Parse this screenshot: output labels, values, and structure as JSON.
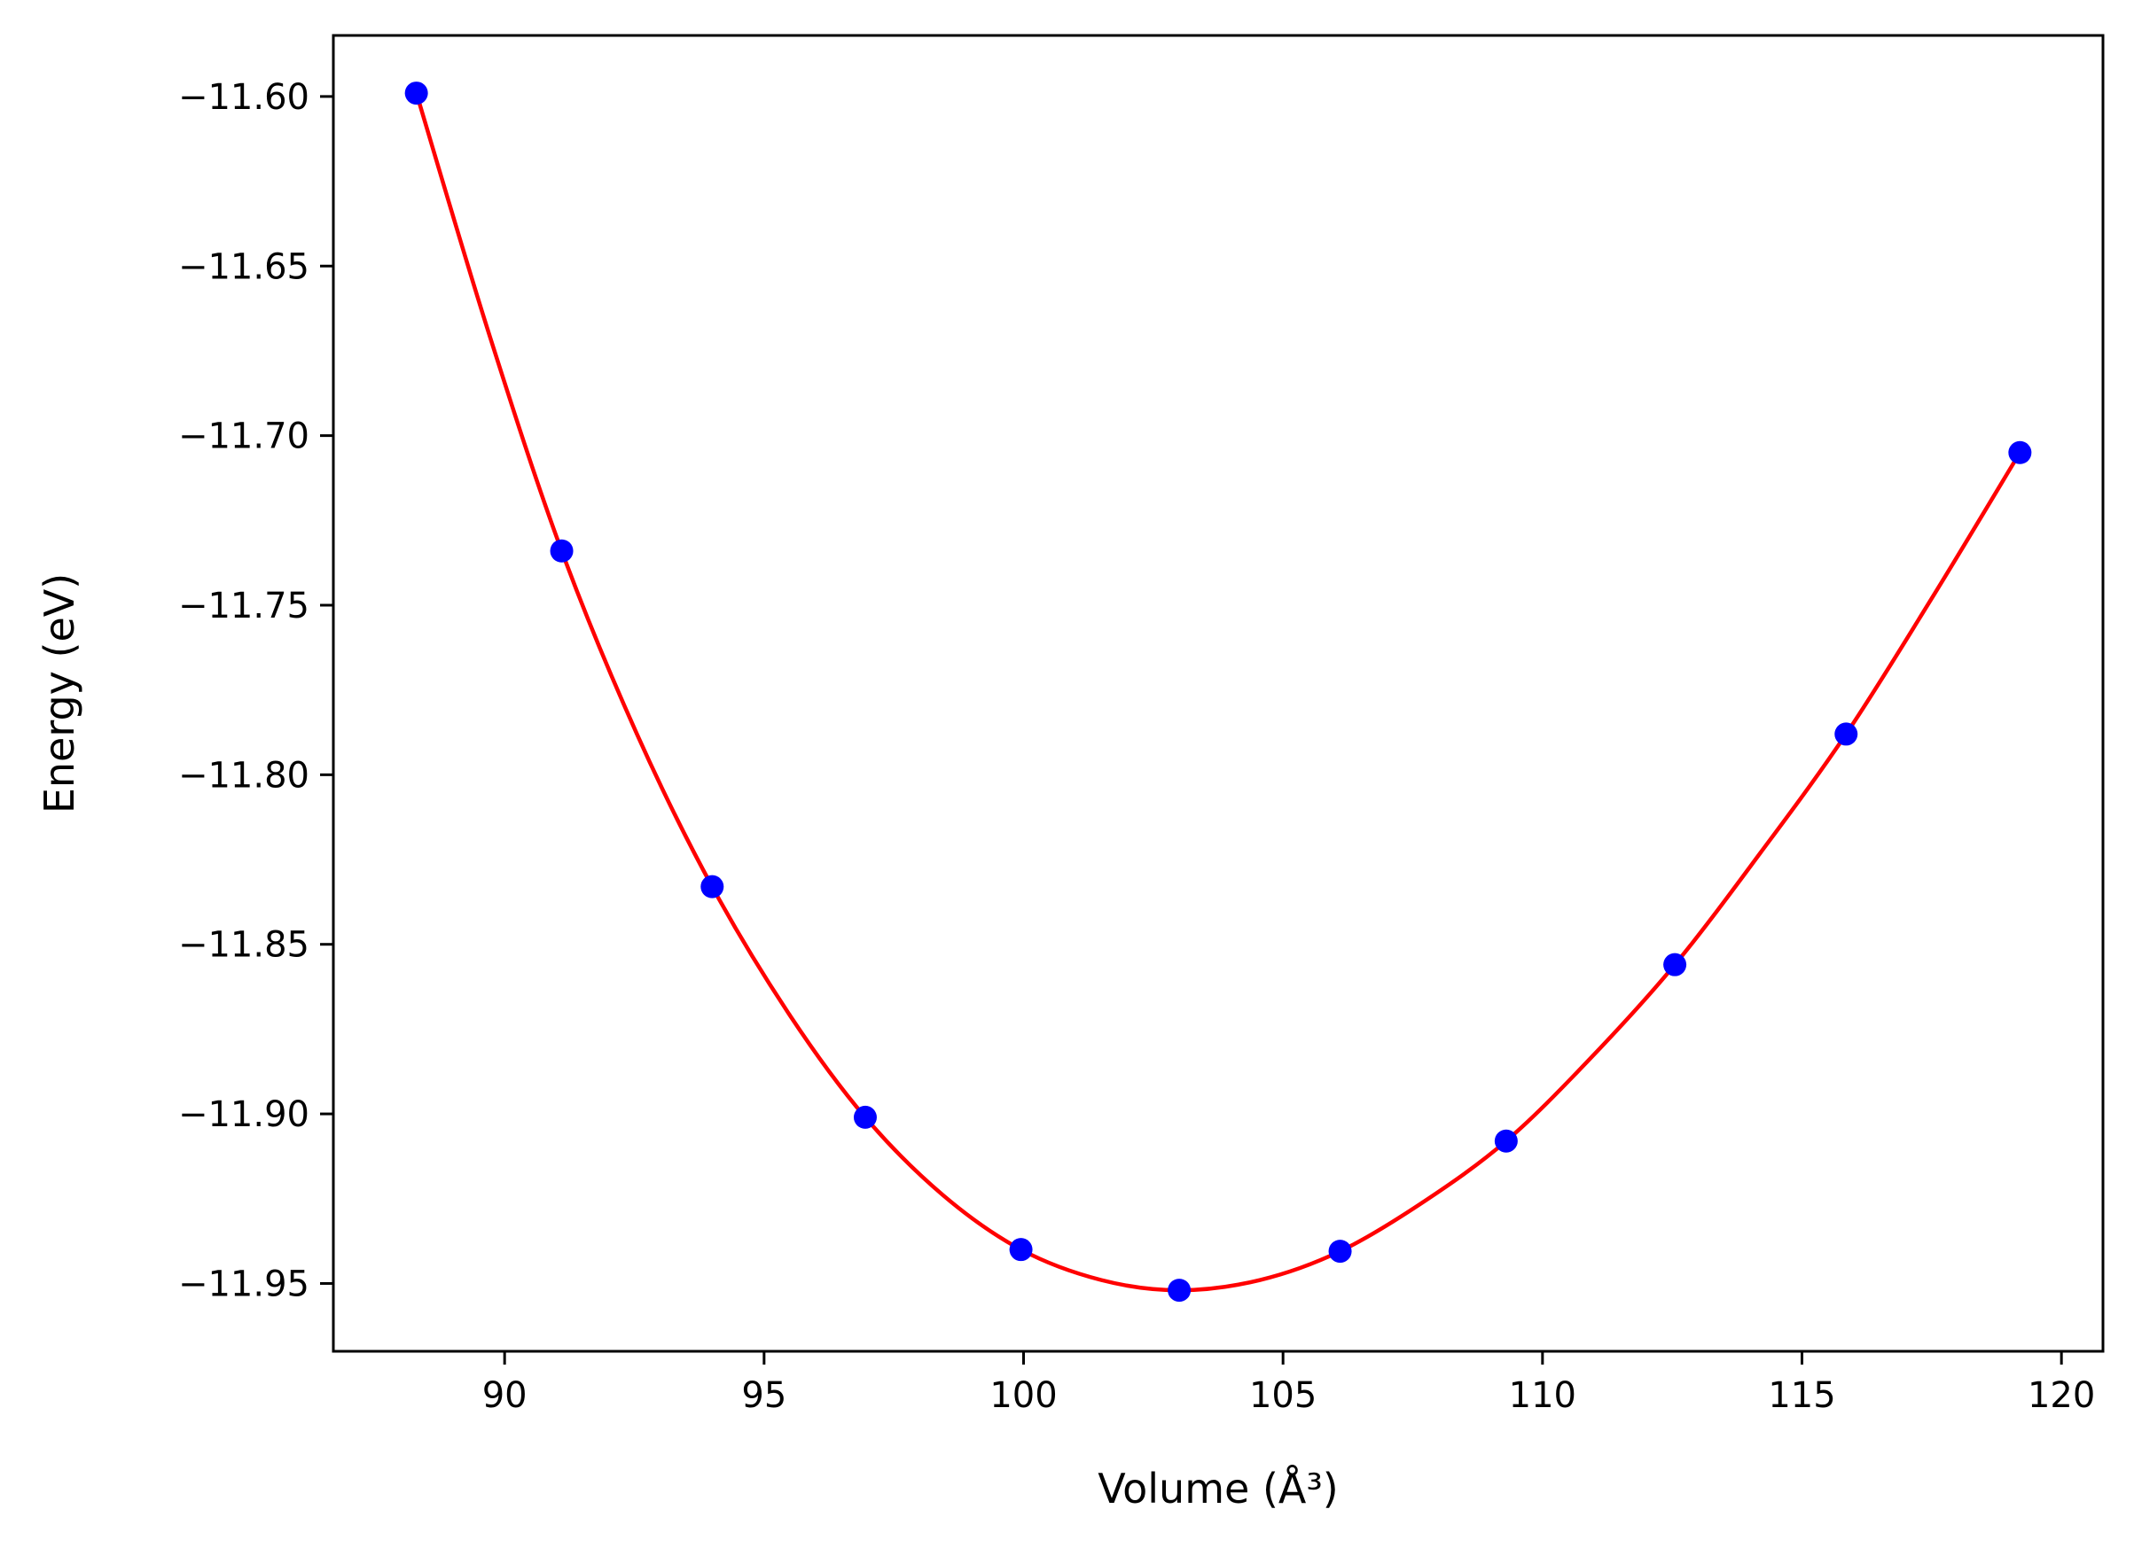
{
  "chart_data": {
    "type": "line",
    "xlabel": "Volume (Å³)",
    "ylabel": "Energy (eV)",
    "xlim": [
      86.7,
      120.8
    ],
    "ylim": [
      -11.97,
      -11.582
    ],
    "xticks": [
      90,
      95,
      100,
      105,
      110,
      115,
      120
    ],
    "yticks": [
      -11.6,
      -11.65,
      -11.7,
      -11.75,
      -11.8,
      -11.85,
      -11.9,
      -11.95
    ],
    "grid": false,
    "series": [
      {
        "style": "markers",
        "color": "#0000ff",
        "points": [
          {
            "x": 88.3,
            "y": -11.599
          },
          {
            "x": 91.1,
            "y": -11.734
          },
          {
            "x": 94.0,
            "y": -11.833
          },
          {
            "x": 96.95,
            "y": -11.901
          },
          {
            "x": 99.95,
            "y": -11.94
          },
          {
            "x": 103.0,
            "y": -11.952
          },
          {
            "x": 106.1,
            "y": -11.9405
          },
          {
            "x": 109.3,
            "y": -11.908
          },
          {
            "x": 112.55,
            "y": -11.856
          },
          {
            "x": 115.85,
            "y": -11.788
          },
          {
            "x": 119.2,
            "y": -11.705
          }
        ]
      },
      {
        "style": "fit-curve",
        "color": "#ff0000",
        "points": [
          {
            "x": 88.3,
            "y": -11.599
          },
          {
            "x": 89.7,
            "y": -11.67
          },
          {
            "x": 91.1,
            "y": -11.734
          },
          {
            "x": 92.55,
            "y": -11.788
          },
          {
            "x": 94.0,
            "y": -11.833
          },
          {
            "x": 95.5,
            "y": -11.871
          },
          {
            "x": 96.95,
            "y": -11.901
          },
          {
            "x": 98.45,
            "y": -11.924
          },
          {
            "x": 99.95,
            "y": -11.94
          },
          {
            "x": 101.5,
            "y": -11.949
          },
          {
            "x": 103.0,
            "y": -11.952
          },
          {
            "x": 104.55,
            "y": -11.949
          },
          {
            "x": 106.1,
            "y": -11.9405
          },
          {
            "x": 107.7,
            "y": -11.926
          },
          {
            "x": 109.3,
            "y": -11.908
          },
          {
            "x": 110.9,
            "y": -11.884
          },
          {
            "x": 112.55,
            "y": -11.856
          },
          {
            "x": 114.2,
            "y": -11.823
          },
          {
            "x": 115.85,
            "y": -11.788
          },
          {
            "x": 117.5,
            "y": -11.748
          },
          {
            "x": 119.2,
            "y": -11.705
          }
        ]
      }
    ]
  }
}
